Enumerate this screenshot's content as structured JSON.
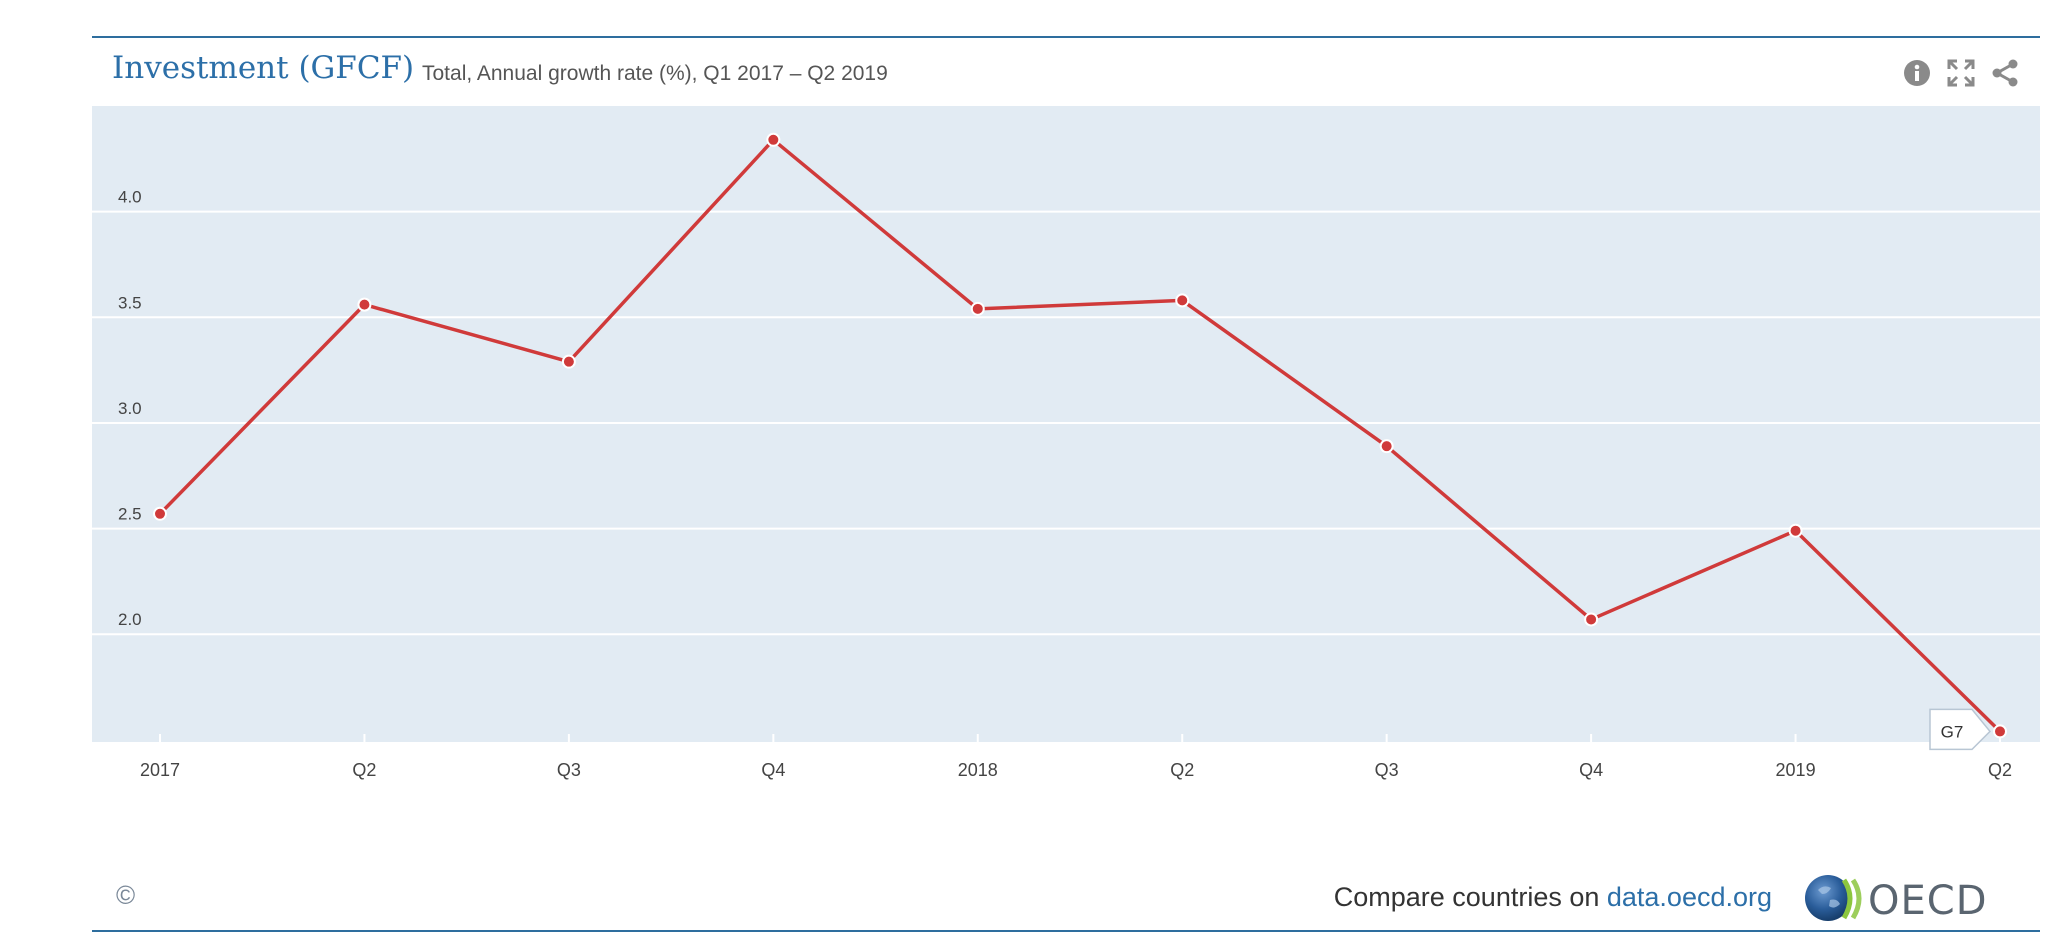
{
  "header": {
    "title": "Investment (GFCF)",
    "subtitle": "Total, Annual growth rate (%), Q1 2017 – Q2 2019",
    "tools": [
      {
        "name": "info-icon"
      },
      {
        "name": "fullscreen-icon"
      },
      {
        "name": "share-icon"
      }
    ]
  },
  "chart_data": {
    "type": "line",
    "categories": [
      "2017",
      "Q2",
      "Q3",
      "Q4",
      "2018",
      "Q2",
      "Q3",
      "Q4",
      "2019",
      "Q2"
    ],
    "series": [
      {
        "name": "G7",
        "color": "#d03a3a",
        "values": [
          2.57,
          3.56,
          3.29,
          4.34,
          3.54,
          3.58,
          2.89,
          2.07,
          2.49,
          1.54
        ]
      }
    ],
    "yticks": [
      "2.0",
      "2.5",
      "3.0",
      "3.5",
      "4.0"
    ],
    "ylim": [
      1.49,
      4.5
    ],
    "grid": true,
    "end_label": "G7",
    "colors": {
      "plot_background": "#e2ebf3",
      "gridline": "#ffffff",
      "line": "#d03a3a"
    }
  },
  "footer": {
    "copyright": "©",
    "compare_prefix": "Compare countries on ",
    "compare_link": "data.oecd.org",
    "logo_text": "OECD"
  }
}
